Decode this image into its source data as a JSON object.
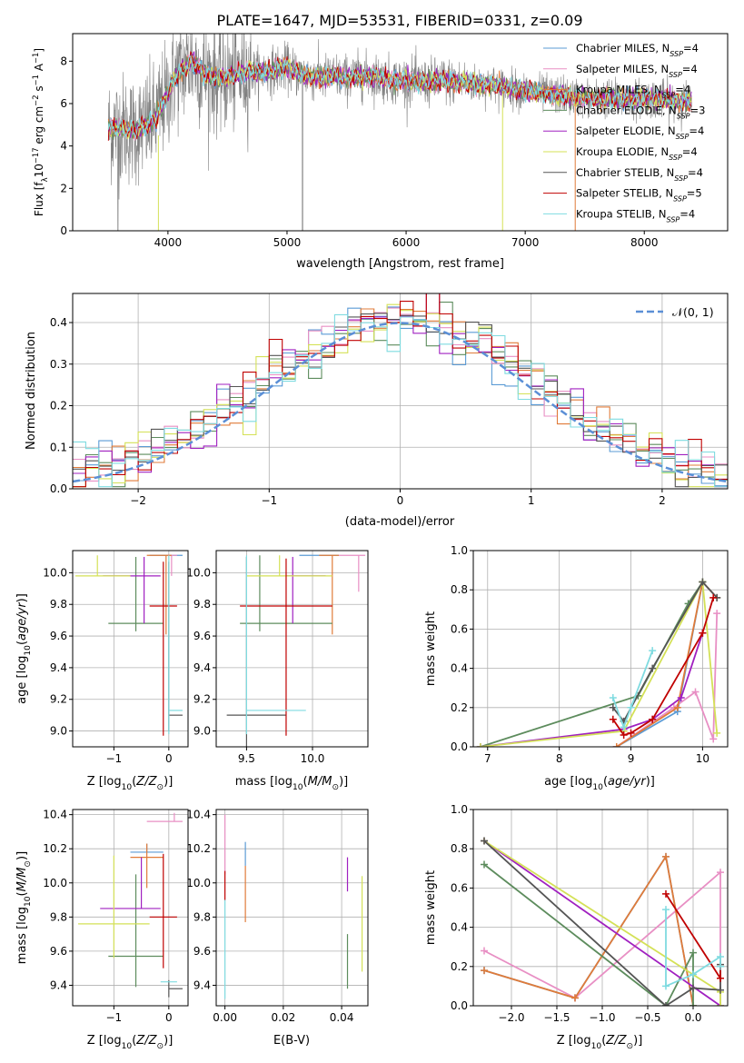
{
  "figure": {
    "title": "PLATE=1647, MJD=53531, FIBERID=0331, z=0.09"
  },
  "colors": {
    "Chabrier MILES": "#5b9bd5",
    "Salpeter MILES": "#e88fc4",
    "Kroupa MILES": "#e07b39",
    "Chabrier ELODIE": "#5d8c5d",
    "Salpeter ELODIE": "#a020c0",
    "Kroupa ELODIE": "#d4e157",
    "Chabrier STELIB": "#555555",
    "Salpeter STELIB": "#c00000",
    "Kroupa STELIB": "#7fdbe0",
    "normal": "#5b8fd6",
    "grid": "#b0b0b0"
  },
  "chart_data": [
    {
      "id": "spectrum",
      "type": "line",
      "xlabel": "wavelength [Angstrom, rest frame]",
      "ylabel": "Flux [f_λ10^-17 erg cm^-2 s^-1 A^-1]",
      "xlim": [
        3200,
        8700
      ],
      "ylim": [
        0,
        9.3
      ],
      "xticks": [
        4000,
        5000,
        6000,
        7000,
        8000
      ],
      "yticks": [
        0,
        2,
        4,
        6,
        8
      ],
      "grid": false,
      "legend_position": "right",
      "legend": [
        {
          "label": "Chabrier MILES, N",
          "sub": "SSP",
          "suffix": "=4",
          "color": "#5b9bd5"
        },
        {
          "label": "Salpeter MILES, N",
          "sub": "SSP",
          "suffix": "=4",
          "color": "#e88fc4"
        },
        {
          "label": "Kroupa MILES, N",
          "sub": "SSP",
          "suffix": "=4",
          "color": "#e07b39"
        },
        {
          "label": "Chabrier ELODIE, N",
          "sub": "SSP",
          "suffix": "=3",
          "color": "#5d8c5d"
        },
        {
          "label": "Salpeter ELODIE, N",
          "sub": "SSP",
          "suffix": "=4",
          "color": "#a020c0"
        },
        {
          "label": "Kroupa ELODIE, N",
          "sub": "SSP",
          "suffix": "=4",
          "color": "#d4e157"
        },
        {
          "label": "Chabrier STELIB, N",
          "sub": "SSP",
          "suffix": "=4",
          "color": "#555555"
        },
        {
          "label": "Salpeter STELIB, N",
          "sub": "SSP",
          "suffix": "=5",
          "color": "#c00000"
        },
        {
          "label": "Kroupa STELIB, N",
          "sub": "SSP",
          "suffix": "=4",
          "color": "#7fdbe0"
        }
      ],
      "continuum": {
        "wavelength": [
          3500,
          3600,
          3700,
          3800,
          3900,
          4000,
          4050,
          4100,
          4200,
          4300,
          4400,
          4500,
          4600,
          4700,
          4800,
          4900,
          5000,
          5100,
          5200,
          5300,
          5400,
          5500,
          5600,
          5700,
          5800,
          5900,
          6000,
          6100,
          6200,
          6300,
          6400,
          6500,
          6600,
          6700,
          6800,
          6900,
          7000,
          7100,
          7200,
          7300,
          7400,
          7500,
          7600,
          7700,
          7800,
          7900,
          8000,
          8100,
          8200,
          8300,
          8400
        ],
        "flux": [
          4.8,
          4.9,
          4.7,
          4.9,
          5.3,
          6.5,
          7.2,
          7.5,
          8.0,
          7.4,
          7.3,
          7.2,
          7.4,
          7.5,
          7.5,
          7.6,
          7.7,
          7.4,
          7.3,
          7.2,
          7.3,
          7.2,
          7.3,
          7.3,
          7.2,
          7.1,
          7.1,
          7.0,
          7.0,
          7.1,
          7.0,
          7.0,
          6.9,
          6.9,
          6.8,
          6.7,
          6.6,
          6.5,
          6.4,
          6.4,
          6.3,
          6.3,
          6.2,
          6.3,
          6.2,
          6.2,
          6.3,
          6.2,
          6.2,
          6.1,
          6.1
        ]
      }
    },
    {
      "id": "residuals",
      "type": "bar",
      "xlabel": "(data-model)/error",
      "ylabel": "Normed distribution",
      "xlim": [
        -2.5,
        2.5
      ],
      "ylim": [
        0,
        0.47
      ],
      "xticks": [
        -2,
        -1,
        0,
        1,
        2
      ],
      "yticks": [
        0.0,
        0.1,
        0.2,
        0.3,
        0.4
      ],
      "grid": true,
      "legend_position": "top-right",
      "legend": [
        {
          "label": "𝒩(0, 1)",
          "color": "#5b8fd6",
          "style": "dashed"
        }
      ],
      "bin_width": 0.1
    },
    {
      "id": "age-vs-Z",
      "type": "scatter",
      "xlabel": "Z [log10(Z/Z⊙)]",
      "ylabel": "age [log10(age/yr)]",
      "xlim": [
        -1.75,
        0.35
      ],
      "ylim": [
        8.9,
        10.14
      ],
      "xticks": [
        -1,
        0
      ],
      "yticks": [
        9.0,
        9.2,
        9.4,
        9.6,
        9.8,
        10.0
      ],
      "grid": true,
      "points": [
        {
          "series": "Chabrier MILES",
          "x": -0.05,
          "xerr": [
            0.3,
            0.3
          ],
          "y": 10.11,
          "yerr": [
            0.0,
            0.0
          ]
        },
        {
          "series": "Salpeter MILES",
          "x": 0.05,
          "xerr": [
            0.08,
            0.1
          ],
          "y": 10.11,
          "yerr": [
            0.13,
            0.0
          ]
        },
        {
          "series": "Kroupa MILES",
          "x": -0.05,
          "xerr": [
            0.35,
            0.1
          ],
          "y": 10.11,
          "yerr": [
            0.5,
            0.0
          ]
        },
        {
          "series": "Chabrier ELODIE",
          "x": -0.6,
          "xerr": [
            0.5,
            0.5
          ],
          "y": 9.68,
          "yerr": [
            0.05,
            0.42
          ]
        },
        {
          "series": "Salpeter ELODIE",
          "x": -0.45,
          "xerr": [
            0.75,
            0.3
          ],
          "y": 9.98,
          "yerr": [
            0.3,
            0.12
          ]
        },
        {
          "series": "Kroupa ELODIE",
          "x": -1.3,
          "xerr": [
            0.4,
            0.6
          ],
          "y": 9.98,
          "yerr": [
            0.0,
            0.13
          ]
        },
        {
          "series": "Chabrier STELIB",
          "x": 0.0,
          "xerr": [
            0.0,
            0.25
          ],
          "y": 9.1,
          "yerr": [
            0.1,
            0.97
          ]
        },
        {
          "series": "Salpeter STELIB",
          "x": -0.1,
          "xerr": [
            0.25,
            0.25
          ],
          "y": 9.79,
          "yerr": [
            0.82,
            0.28
          ]
        },
        {
          "series": "Kroupa STELIB",
          "x": 0.0,
          "xerr": [
            0.0,
            0.25
          ],
          "y": 9.13,
          "yerr": [
            0.15,
            0.98
          ]
        }
      ]
    },
    {
      "id": "age-vs-mass",
      "type": "scatter",
      "xlabel": "mass [log10(M/M⊙)]",
      "ylabel": "",
      "xlim": [
        9.27,
        10.42
      ],
      "ylim": [
        8.9,
        10.14
      ],
      "xticks": [
        9.5,
        10.0
      ],
      "yticks": [
        9.0,
        9.2,
        9.4,
        9.6,
        9.8,
        10.0
      ],
      "grid": true,
      "points": [
        {
          "series": "Chabrier MILES",
          "x": 10.05,
          "xerr": [
            0.15,
            0.15
          ],
          "y": 10.11,
          "yerr": [
            0.0,
            0.0
          ]
        },
        {
          "series": "Salpeter MILES",
          "x": 10.35,
          "xerr": [
            0.15,
            0.05
          ],
          "y": 10.11,
          "yerr": [
            0.23,
            0.0
          ]
        },
        {
          "series": "Kroupa MILES",
          "x": 10.15,
          "xerr": [
            0.1,
            0.05
          ],
          "y": 10.11,
          "yerr": [
            0.5,
            0.0
          ]
        },
        {
          "series": "Chabrier ELODIE",
          "x": 9.6,
          "xerr": [
            0.15,
            0.55
          ],
          "y": 9.68,
          "yerr": [
            0.05,
            0.43
          ]
        },
        {
          "series": "Salpeter ELODIE",
          "x": 9.85,
          "xerr": [
            0.05,
            0.25
          ],
          "y": 9.98,
          "yerr": [
            0.3,
            0.12
          ]
        },
        {
          "series": "Kroupa ELODIE",
          "x": 9.75,
          "xerr": [
            0.25,
            0.4
          ],
          "y": 9.98,
          "yerr": [
            0.0,
            0.13
          ]
        },
        {
          "series": "Chabrier STELIB",
          "x": 9.5,
          "xerr": [
            0.15,
            0.3
          ],
          "y": 9.1,
          "yerr": [
            0.2,
            1.0
          ]
        },
        {
          "series": "Salpeter STELIB",
          "x": 9.8,
          "xerr": [
            0.35,
            0.35
          ],
          "y": 9.79,
          "yerr": [
            0.82,
            0.3
          ]
        },
        {
          "series": "Kroupa STELIB",
          "x": 9.5,
          "xerr": [
            0.0,
            0.45
          ],
          "y": 9.13,
          "yerr": [
            0.15,
            0.98
          ]
        }
      ]
    },
    {
      "id": "weight-vs-age",
      "type": "line",
      "xlabel": "age [log10(age/yr)]",
      "ylabel": "mass weight",
      "xlim": [
        6.8,
        10.35
      ],
      "ylim": [
        0,
        1
      ],
      "xticks": [
        7,
        8,
        9,
        10
      ],
      "yticks": [
        0.0,
        0.2,
        0.4,
        0.6,
        0.8,
        1.0
      ],
      "grid": true,
      "series": [
        {
          "name": "Chabrier MILES",
          "x": [
            8.8,
            9.65,
            10.0,
            10.2
          ],
          "y": [
            0.0,
            0.18,
            0.84,
            0.76
          ]
        },
        {
          "name": "Salpeter MILES",
          "x": [
            8.8,
            9.6,
            9.9,
            10.15,
            10.2
          ],
          "y": [
            0.0,
            0.2,
            0.28,
            0.04,
            0.68
          ]
        },
        {
          "name": "Kroupa MILES",
          "x": [
            8.8,
            9.65,
            10.0,
            10.2
          ],
          "y": [
            0.0,
            0.2,
            0.84,
            0.76
          ]
        },
        {
          "name": "Chabrier ELODIE",
          "x": [
            6.9,
            9.1,
            9.8,
            10.0
          ],
          "y": [
            0.0,
            0.26,
            0.73,
            0.84
          ]
        },
        {
          "name": "Salpeter ELODIE",
          "x": [
            6.9,
            8.9,
            9.3,
            9.7,
            10.0
          ],
          "y": [
            0.0,
            0.09,
            0.14,
            0.25,
            0.58
          ]
        },
        {
          "name": "Kroupa ELODIE",
          "x": [
            6.9,
            8.9,
            10.0,
            10.2
          ],
          "y": [
            0.0,
            0.08,
            0.84,
            0.07
          ]
        },
        {
          "name": "Chabrier STELIB",
          "x": [
            8.75,
            8.9,
            9.3,
            10.0,
            10.2
          ],
          "y": [
            0.2,
            0.13,
            0.4,
            0.84,
            0.76
          ]
        },
        {
          "name": "Salpeter STELIB",
          "x": [
            8.75,
            8.9,
            9.0,
            9.3,
            10.0,
            10.15
          ],
          "y": [
            0.14,
            0.06,
            0.07,
            0.14,
            0.58,
            0.76
          ]
        },
        {
          "name": "Kroupa STELIB",
          "x": [
            8.75,
            8.9,
            9.0,
            9.3
          ],
          "y": [
            0.25,
            0.1,
            0.2,
            0.49
          ]
        }
      ]
    },
    {
      "id": "mass-vs-Z",
      "type": "scatter",
      "xlabel": "Z [log10(Z/Z⊙)]",
      "ylabel": "mass [log10(M/M⊙)]",
      "xlim": [
        -1.75,
        0.35
      ],
      "ylim": [
        9.28,
        10.43
      ],
      "xticks": [
        -1,
        0
      ],
      "yticks": [
        9.4,
        9.6,
        9.8,
        10.0,
        10.2,
        10.4
      ],
      "grid": true,
      "points": [
        {
          "series": "Chabrier MILES",
          "x": -0.4,
          "xerr": [
            0.3,
            0.3
          ],
          "y": 10.18,
          "yerr": [
            0.0,
            0.05
          ]
        },
        {
          "series": "Salpeter MILES",
          "x": 0.1,
          "xerr": [
            0.5,
            0.15
          ],
          "y": 10.36,
          "yerr": [
            0.0,
            0.05
          ]
        },
        {
          "series": "Kroupa MILES",
          "x": -0.4,
          "xerr": [
            0.3,
            0.3
          ],
          "y": 10.15,
          "yerr": [
            0.18,
            0.08
          ]
        },
        {
          "series": "Chabrier ELODIE",
          "x": -0.6,
          "xerr": [
            0.5,
            0.5
          ],
          "y": 9.57,
          "yerr": [
            0.18,
            0.48
          ]
        },
        {
          "series": "Salpeter ELODIE",
          "x": -0.5,
          "xerr": [
            0.75,
            0.35
          ],
          "y": 9.85,
          "yerr": [
            0.0,
            0.3
          ]
        },
        {
          "series": "Kroupa ELODIE",
          "x": -1.0,
          "xerr": [
            0.65,
            0.65
          ],
          "y": 9.76,
          "yerr": [
            0.2,
            0.4
          ]
        },
        {
          "series": "Chabrier STELIB",
          "x": 0.0,
          "xerr": [
            0.0,
            0.25
          ],
          "y": 9.38,
          "yerr": [
            0.05,
            0.05
          ]
        },
        {
          "series": "Salpeter STELIB",
          "x": -0.1,
          "xerr": [
            0.25,
            0.25
          ],
          "y": 9.8,
          "yerr": [
            0.3,
            0.37
          ]
        },
        {
          "series": "Kroupa STELIB",
          "x": -0.1,
          "xerr": [
            0.05,
            0.25
          ],
          "y": 9.42,
          "yerr": [
            0.0,
            0.0
          ]
        }
      ]
    },
    {
      "id": "mass-vs-ebv",
      "type": "scatter",
      "xlabel": "E(B-V)",
      "ylabel": "",
      "xlim": [
        -0.003,
        0.049
      ],
      "ylim": [
        9.28,
        10.43
      ],
      "xticks": [
        0.0,
        0.02,
        0.04
      ],
      "yticks": [
        9.4,
        9.6,
        9.8,
        10.0,
        10.2,
        10.4
      ],
      "grid": true,
      "points": [
        {
          "series": "Salpeter MILES",
          "x": 0.0,
          "y": 10.05,
          "yerr": [
            0.0,
            0.35
          ]
        },
        {
          "series": "Chabrier MILES",
          "x": 0.007,
          "y": 10.1,
          "yerr": [
            0.0,
            0.14
          ]
        },
        {
          "series": "Kroupa MILES",
          "x": 0.007,
          "y": 9.95,
          "yerr": [
            0.18,
            0.15
          ]
        },
        {
          "series": "Salpeter STELIB",
          "x": 0.0,
          "y": 9.9,
          "yerr": [
            0.0,
            0.17
          ]
        },
        {
          "series": "Kroupa STELIB",
          "x": 0.0,
          "y": 9.6,
          "yerr": [
            0.28,
            0.3
          ]
        },
        {
          "series": "Salpeter ELODIE",
          "x": 0.042,
          "y": 9.95,
          "yerr": [
            0.0,
            0.2
          ]
        },
        {
          "series": "Chabrier ELODIE",
          "x": 0.042,
          "y": 9.7,
          "yerr": [
            0.32,
            0.0
          ]
        },
        {
          "series": "Kroupa ELODIE",
          "x": 0.047,
          "y": 9.76,
          "yerr": [
            0.28,
            0.28
          ]
        }
      ]
    },
    {
      "id": "weight-vs-Z",
      "type": "line",
      "xlabel": "Z [log10(Z/Z⊙)]",
      "ylabel": "mass weight",
      "xlim": [
        -2.42,
        0.38
      ],
      "ylim": [
        0,
        1
      ],
      "xticks": [
        -2.0,
        -1.5,
        -1.0,
        -0.5,
        0.0
      ],
      "yticks": [
        0.0,
        0.2,
        0.4,
        0.6,
        0.8,
        1.0
      ],
      "grid": true,
      "series": [
        {
          "name": "Chabrier MILES",
          "x": [
            -2.3,
            -1.3,
            -0.3,
            0.0
          ],
          "y": [
            0.18,
            0.04,
            0.76,
            0.0
          ]
        },
        {
          "name": "Salpeter MILES",
          "x": [
            -2.3,
            -1.3,
            0.3,
            0.3
          ],
          "y": [
            0.28,
            0.04,
            0.68,
            0.0
          ]
        },
        {
          "name": "Kroupa MILES",
          "x": [
            -2.3,
            -1.3,
            -0.3,
            0.0
          ],
          "y": [
            0.18,
            0.04,
            0.76,
            0.0
          ]
        },
        {
          "name": "Chabrier ELODIE",
          "x": [
            -2.3,
            -0.3,
            0.0,
            0.0
          ],
          "y": [
            0.72,
            0.0,
            0.27,
            0.0
          ]
        },
        {
          "name": "Salpeter ELODIE",
          "x": [
            -2.3,
            0.3
          ],
          "y": [
            0.84,
            0.0
          ]
        },
        {
          "name": "Kroupa ELODIE",
          "x": [
            -2.3,
            0.3,
            0.3
          ],
          "y": [
            0.84,
            0.07,
            0.0
          ]
        },
        {
          "name": "Chabrier STELIB",
          "x": [
            -2.3,
            -0.3,
            0.0,
            0.3,
            0.3
          ],
          "y": [
            0.84,
            0.0,
            0.09,
            0.08,
            0.21
          ]
        },
        {
          "name": "Salpeter STELIB",
          "x": [
            -0.3,
            0.3,
            0.3
          ],
          "y": [
            0.57,
            0.14,
            0.2
          ]
        },
        {
          "name": "Kroupa STELIB",
          "x": [
            -0.3,
            -0.3,
            0.0,
            0.3,
            0.3
          ],
          "y": [
            0.49,
            0.1,
            0.16,
            0.25,
            0.2
          ]
        }
      ]
    }
  ]
}
